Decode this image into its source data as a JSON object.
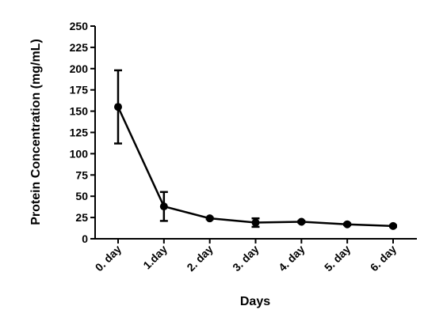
{
  "chart_data": {
    "type": "line",
    "title": "",
    "xlabel": "Days",
    "ylabel": "Protein Concentration (mg/mL)",
    "categories": [
      "0. day",
      "1.day",
      "2. day",
      "3. day",
      "4. day",
      "5. day",
      "6. day"
    ],
    "ylim": [
      0,
      250
    ],
    "yticks": [
      0,
      25,
      50,
      75,
      100,
      125,
      150,
      175,
      200,
      225,
      250
    ],
    "ytick_labels": [
      "0",
      "25",
      "50",
      "75",
      "100",
      "125",
      "150",
      "175",
      "200",
      "225",
      "250"
    ],
    "grid": false,
    "legend": "none",
    "series": [
      {
        "values": [
          155,
          38,
          24,
          19,
          20,
          17,
          15
        ],
        "error": [
          43,
          17,
          1,
          5,
          1,
          1,
          1
        ],
        "color": "#000000",
        "marker": "circle"
      }
    ]
  }
}
